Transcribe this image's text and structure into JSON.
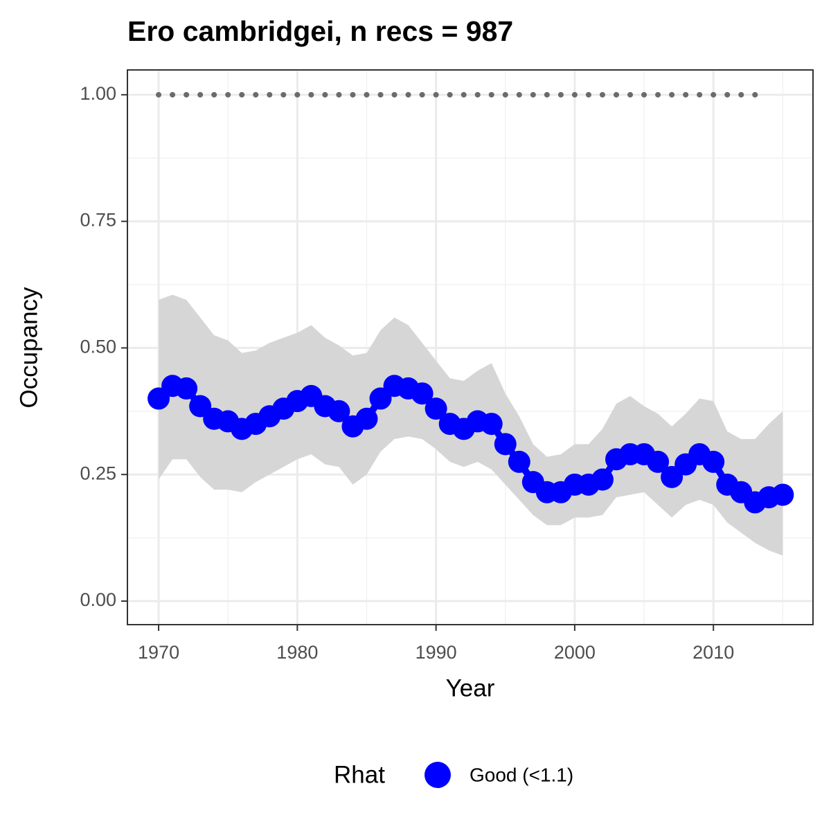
{
  "chart_data": {
    "type": "line",
    "title": "Ero cambridgei, n recs = 987",
    "x_label": "Year",
    "y_label": "Occupancy",
    "x": [
      1970,
      1971,
      1972,
      1973,
      1974,
      1975,
      1976,
      1977,
      1978,
      1979,
      1980,
      1981,
      1982,
      1983,
      1984,
      1985,
      1986,
      1987,
      1988,
      1989,
      1990,
      1991,
      1992,
      1993,
      1994,
      1995,
      1996,
      1997,
      1998,
      1999,
      2000,
      2001,
      2002,
      2003,
      2004,
      2005,
      2006,
      2007,
      2008,
      2009,
      2010,
      2011,
      2012,
      2013,
      2014,
      2015
    ],
    "series": [
      {
        "name": "Good (<1.1)",
        "color": "#0000ff",
        "values": [
          0.4,
          0.425,
          0.42,
          0.385,
          0.36,
          0.355,
          0.34,
          0.35,
          0.365,
          0.38,
          0.395,
          0.405,
          0.385,
          0.375,
          0.345,
          0.36,
          0.4,
          0.425,
          0.42,
          0.41,
          0.38,
          0.35,
          0.34,
          0.355,
          0.35,
          0.31,
          0.275,
          0.235,
          0.215,
          0.215,
          0.23,
          0.23,
          0.24,
          0.28,
          0.29,
          0.29,
          0.275,
          0.245,
          0.27,
          0.29,
          0.275,
          0.23,
          0.215,
          0.195,
          0.205,
          0.21
        ]
      }
    ],
    "band": {
      "color": "#d6d6d6",
      "upper": [
        0.595,
        0.605,
        0.595,
        0.56,
        0.525,
        0.515,
        0.49,
        0.495,
        0.51,
        0.52,
        0.53,
        0.545,
        0.52,
        0.505,
        0.485,
        0.49,
        0.535,
        0.56,
        0.545,
        0.51,
        0.475,
        0.44,
        0.435,
        0.455,
        0.47,
        0.41,
        0.365,
        0.31,
        0.285,
        0.29,
        0.31,
        0.31,
        0.34,
        0.39,
        0.405,
        0.385,
        0.37,
        0.345,
        0.37,
        0.4,
        0.395,
        0.335,
        0.32,
        0.32,
        0.35,
        0.375
      ],
      "lower": [
        0.24,
        0.28,
        0.28,
        0.245,
        0.22,
        0.22,
        0.215,
        0.235,
        0.25,
        0.265,
        0.28,
        0.29,
        0.27,
        0.265,
        0.23,
        0.25,
        0.295,
        0.32,
        0.325,
        0.32,
        0.3,
        0.275,
        0.265,
        0.275,
        0.26,
        0.23,
        0.2,
        0.17,
        0.15,
        0.15,
        0.165,
        0.165,
        0.17,
        0.205,
        0.21,
        0.215,
        0.19,
        0.165,
        0.19,
        0.2,
        0.19,
        0.155,
        0.135,
        0.115,
        0.1,
        0.09
      ]
    },
    "dots": {
      "color": "#6b6b6b",
      "x": [
        1970,
        1971,
        1972,
        1973,
        1974,
        1975,
        1976,
        1977,
        1978,
        1979,
        1980,
        1981,
        1982,
        1983,
        1984,
        1985,
        1986,
        1987,
        1988,
        1989,
        1990,
        1991,
        1992,
        1993,
        1994,
        1995,
        1996,
        1997,
        1998,
        1999,
        2000,
        2001,
        2002,
        2003,
        2004,
        2005,
        2006,
        2007,
        2008,
        2009,
        2010,
        2011,
        2012,
        2013
      ],
      "values": [
        1,
        1,
        1,
        1,
        1,
        1,
        1,
        1,
        1,
        1,
        1,
        1,
        1,
        1,
        1,
        1,
        1,
        1,
        1,
        1,
        1,
        1,
        1,
        1,
        1,
        1,
        1,
        1,
        1,
        1,
        1,
        1,
        1,
        1,
        1,
        1,
        1,
        1,
        1,
        1,
        1,
        1,
        1,
        1
      ]
    },
    "xlim": [
      1967.75,
      2017.18
    ],
    "ylim": [
      -0.0465,
      1.049
    ],
    "xticks": [
      1970,
      1980,
      1990,
      2000,
      2010
    ],
    "yticks": [
      {
        "value": 0,
        "label": "0.00"
      },
      {
        "value": 0.25,
        "label": "0.25"
      },
      {
        "value": 0.5,
        "label": "0.50"
      },
      {
        "value": 0.75,
        "label": "0.75"
      },
      {
        "value": 1,
        "label": "1.00"
      }
    ],
    "xminor": [
      1975,
      1985,
      1995,
      2005,
      2015
    ],
    "yminor": [
      0.125,
      0.375,
      0.625,
      0.875
    ],
    "grid": true,
    "legend_title": "Rhat",
    "legend": "bottom"
  }
}
